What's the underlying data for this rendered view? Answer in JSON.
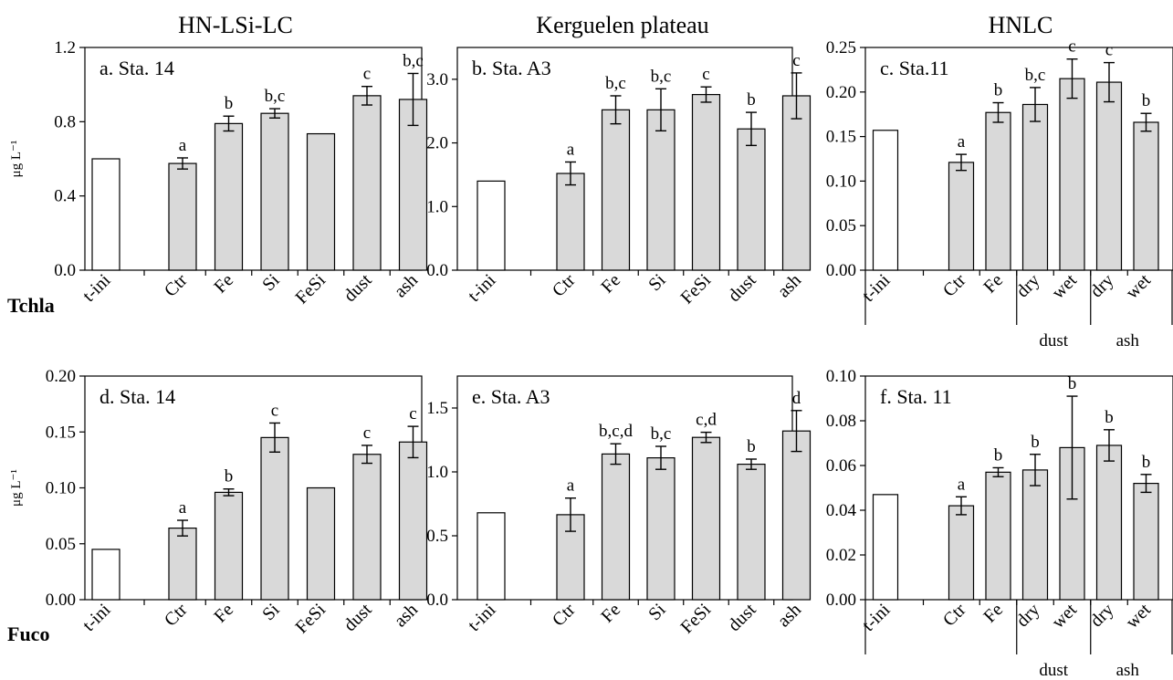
{
  "column_titles": [
    "HN-LSi-LC",
    "Kerguelen plateau",
    "HNLC"
  ],
  "row_labels": [
    "Tchla",
    "Fuco"
  ],
  "ylabel": "μg L⁻¹",
  "colors": {
    "initial_bar": "#ffffff",
    "treatment_bar": "#d9d9d9",
    "stroke": "#000000"
  },
  "chart_data": [
    {
      "type": "bar",
      "title": "a. Sta. 14",
      "ylabel": "μg L⁻¹",
      "ylim": [
        0,
        1.2
      ],
      "yticks": [
        "0.0",
        "0.4",
        "0.8",
        "1.2"
      ],
      "categories": [
        "t-ini",
        "Ctr",
        "Fe",
        "Si",
        "FeSi",
        "dust",
        "ash"
      ],
      "values": [
        0.6,
        0.575,
        0.79,
        0.845,
        0.735,
        0.94,
        0.92
      ],
      "errors": [
        null,
        0.03,
        0.04,
        0.025,
        null,
        0.05,
        0.14
      ],
      "letters": [
        "",
        "a",
        "b",
        "b,c",
        "",
        "c",
        "b,c"
      ],
      "groups": []
    },
    {
      "type": "bar",
      "title": "b. Sta. A3",
      "ylabel": "",
      "ylim": [
        0,
        3.5
      ],
      "yticks": [
        "0.0",
        "1.0",
        "2.0",
        "3.0"
      ],
      "categories": [
        "t-ini",
        "Ctr",
        "Fe",
        "Si",
        "FeSi",
        "dust",
        "ash"
      ],
      "values": [
        1.4,
        1.52,
        2.52,
        2.52,
        2.76,
        2.22,
        2.74
      ],
      "errors": [
        null,
        0.18,
        0.22,
        0.33,
        0.12,
        0.26,
        0.36
      ],
      "letters": [
        "",
        "a",
        "b,c",
        "b,c",
        "c",
        "b",
        "c"
      ],
      "groups": []
    },
    {
      "type": "bar",
      "title": "c. Sta.11",
      "ylabel": "",
      "ylim": [
        0,
        0.25
      ],
      "yticks": [
        "0.00",
        "0.05",
        "0.10",
        "0.15",
        "0.20",
        "0.25"
      ],
      "categories": [
        "t-ini",
        "Ctr",
        "Fe",
        "dry",
        "wet",
        "dry",
        "wet"
      ],
      "values": [
        0.157,
        0.121,
        0.177,
        0.186,
        0.215,
        0.211,
        0.166
      ],
      "errors": [
        null,
        0.009,
        0.011,
        0.019,
        0.022,
        0.022,
        0.01
      ],
      "letters": [
        "",
        "a",
        "b",
        "b,c",
        "c",
        "c",
        "b"
      ],
      "groups": [
        "dust",
        "ash"
      ]
    },
    {
      "type": "bar",
      "title": "d. Sta. 14",
      "ylabel": "μg L⁻¹",
      "ylim": [
        0,
        0.2
      ],
      "yticks": [
        "0.00",
        "0.05",
        "0.10",
        "0.15",
        "0.20"
      ],
      "categories": [
        "t-ini",
        "Ctr",
        "Fe",
        "Si",
        "FeSi",
        "dust",
        "ash"
      ],
      "values": [
        0.045,
        0.064,
        0.096,
        0.145,
        0.1,
        0.13,
        0.141
      ],
      "errors": [
        null,
        0.007,
        0.003,
        0.013,
        null,
        0.008,
        0.014
      ],
      "letters": [
        "",
        "a",
        "b",
        "c",
        "",
        "c",
        "c"
      ],
      "groups": []
    },
    {
      "type": "bar",
      "title": "e. Sta. A3",
      "ylabel": "",
      "ylim": [
        0,
        1.75
      ],
      "yticks": [
        "0.0",
        "0.5",
        "1.0",
        "1.5"
      ],
      "categories": [
        "t-ini",
        "Ctr",
        "Fe",
        "Si",
        "FeSi",
        "dust",
        "ash"
      ],
      "values": [
        0.68,
        0.665,
        1.14,
        1.11,
        1.27,
        1.06,
        1.32
      ],
      "errors": [
        null,
        0.13,
        0.08,
        0.09,
        0.04,
        0.04,
        0.16
      ],
      "letters": [
        "",
        "a",
        "b,c,d",
        "b,c",
        "c,d",
        "b",
        "d"
      ],
      "groups": []
    },
    {
      "type": "bar",
      "title": "f. Sta. 11",
      "ylabel": "",
      "ylim": [
        0,
        0.1
      ],
      "yticks": [
        "0.00",
        "0.02",
        "0.04",
        "0.06",
        "0.08",
        "0.10"
      ],
      "categories": [
        "t-ini",
        "Ctr",
        "Fe",
        "dry",
        "wet",
        "dry",
        "wet"
      ],
      "values": [
        0.047,
        0.042,
        0.057,
        0.058,
        0.068,
        0.069,
        0.052
      ],
      "errors": [
        null,
        0.004,
        0.002,
        0.007,
        0.023,
        0.007,
        0.004
      ],
      "letters": [
        "",
        "a",
        "b",
        "b",
        "b",
        "b",
        "b"
      ],
      "groups": [
        "dust",
        "ash"
      ]
    }
  ]
}
